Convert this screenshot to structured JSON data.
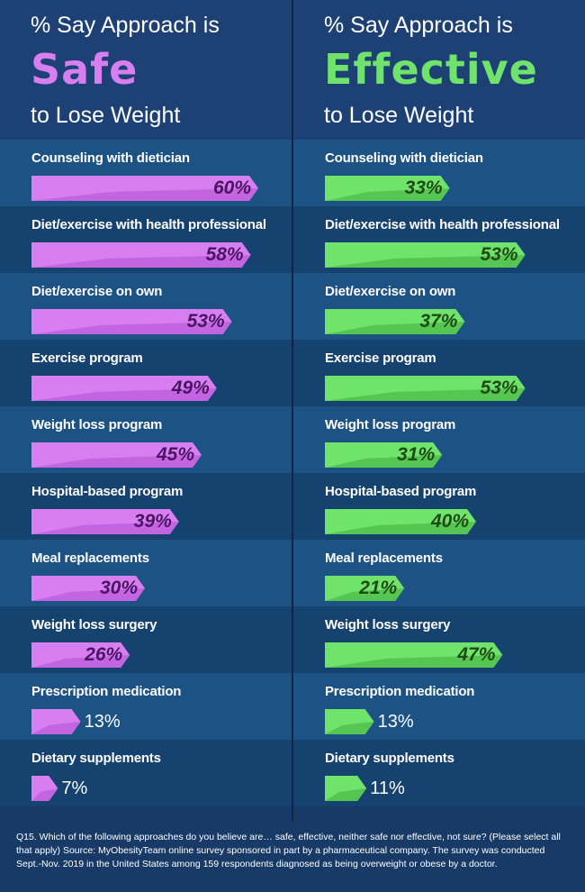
{
  "colors": {
    "safe_bar": "#d77ff0",
    "safe_bar_dark": "#b24fd6",
    "effective_bar": "#6fe36b",
    "effective_bar_dark": "#3fae3e",
    "background": "#183a66"
  },
  "left_header": {
    "line1": "% Say Approach is",
    "big": "Safe",
    "line3": "to Lose Weight"
  },
  "right_header": {
    "line1": "% Say Approach is",
    "big": "Effective",
    "line3": "to Lose Weight"
  },
  "chart_data": [
    {
      "type": "bar",
      "orientation": "horizontal",
      "categories": [
        "Counseling with dietician",
        "Diet/exercise with health professional",
        "Diet/exercise on own",
        "Exercise program",
        "Weight loss program",
        "Hospital-based program",
        "Meal replacements",
        "Weight loss surgery",
        "Prescription medication",
        "Dietary supplements"
      ],
      "values": [
        60,
        58,
        53,
        49,
        45,
        39,
        30,
        26,
        13,
        7
      ],
      "labels": [
        "60%",
        "58%",
        "53%",
        "49%",
        "45%",
        "39%",
        "30%",
        "26%",
        "13%",
        "7%"
      ],
      "title": "% Say Approach is Safe to Lose Weight",
      "xlim": [
        0,
        60
      ],
      "grid": false
    },
    {
      "type": "bar",
      "orientation": "horizontal",
      "categories": [
        "Counseling with dietician",
        "Diet/exercise with health professional",
        "Diet/exercise on own",
        "Exercise program",
        "Weight loss program",
        "Hospital-based program",
        "Meal replacements",
        "Weight loss surgery",
        "Prescription medication",
        "Dietary supplements"
      ],
      "values": [
        33,
        53,
        37,
        53,
        31,
        40,
        21,
        47,
        13,
        11
      ],
      "labels": [
        "33%",
        "53%",
        "37%",
        "53%",
        "31%",
        "40%",
        "21%",
        "47%",
        "13%",
        "11%"
      ],
      "title": "% Say Approach is Effective to Lose Weight",
      "xlim": [
        0,
        60
      ],
      "grid": false
    }
  ],
  "footer": {
    "text": "Q15. Which of the following approaches do you believe are… safe, effective, neither safe nor effective, not sure? (Please select all that apply) Source: MyObesityTeam online survey sponsored in part by a pharmaceutical company. The survey was conducted Sept.-Nov. 2019 in the United States among 159 respondents diagnosed as being overweight or obese by a doctor."
  }
}
